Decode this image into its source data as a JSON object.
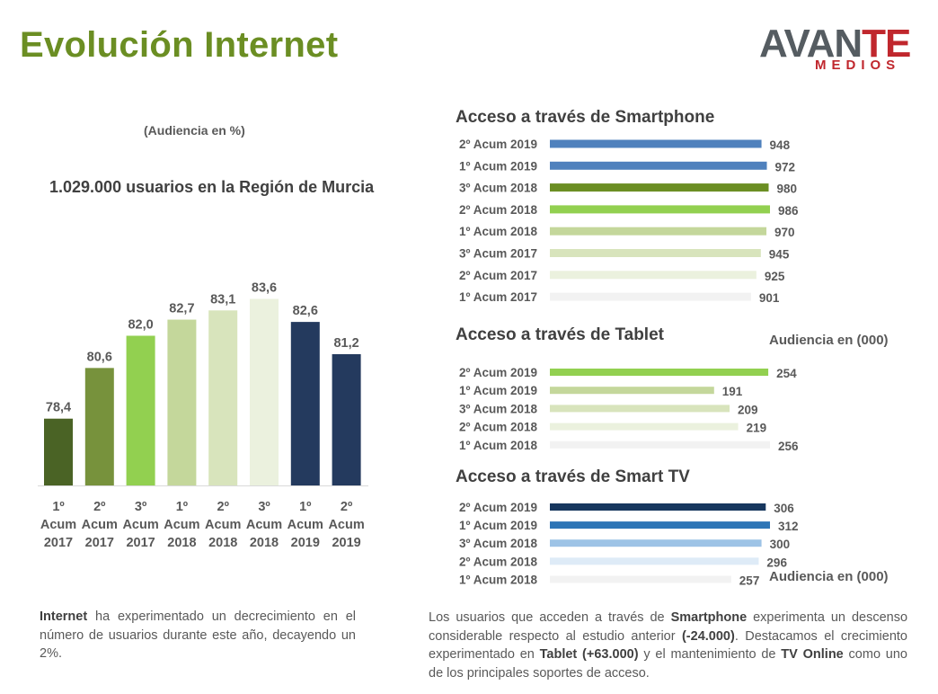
{
  "header": {
    "title": "Evolución Internet",
    "logo": {
      "word_main": "AVAN",
      "word_accent": "TE",
      "sub": "MEDIOS"
    }
  },
  "left": {
    "audience_note": "(Audiencia en %)",
    "users_headline": "1.029.000 usuarios en la Región de Murcia"
  },
  "right": {
    "tablet_unit_note": "Audiencia en (000)",
    "smarttv_unit_note": "Audiencia en (000)"
  },
  "text": {
    "left_paragraph": {
      "bold": "Internet",
      "rest": " ha experimentado un decrecimiento en el número de usuarios durante este año, decayendo un 2%."
    },
    "right_paragraph": {
      "part1": "Los usuarios que acceden a través de ",
      "bold1": "Smartphone",
      "part2": " experimenta un descenso considerable respecto al estudio anterior ",
      "bold2": "(-24.000)",
      "part3": ". Destacamos el crecimiento experimentado en ",
      "bold3": "Tablet (+63.000)",
      "part4": " y el mantenimiento de ",
      "bold4": "TV Online",
      "part5": " como uno de los principales soportes de acceso."
    }
  },
  "chart_data": [
    {
      "type": "bar",
      "orientation": "vertical",
      "categories": [
        [
          "1º",
          "Acum",
          "2017"
        ],
        [
          "2º",
          "Acum",
          "2017"
        ],
        [
          "3º",
          "Acum",
          "2017"
        ],
        [
          "1º",
          "Acum",
          "2018"
        ],
        [
          "2º",
          "Acum",
          "2018"
        ],
        [
          "3º",
          "Acum",
          "2018"
        ],
        [
          "1º",
          "Acum",
          "2019"
        ],
        [
          "2º",
          "Acum",
          "2019"
        ]
      ],
      "values": [
        78.4,
        80.6,
        82.0,
        82.7,
        83.1,
        83.6,
        82.6,
        81.2
      ],
      "data_labels": [
        "78,4",
        "80,6",
        "82,0",
        "82,7",
        "83,1",
        "83,6",
        "82,6",
        "81,2"
      ],
      "colors": [
        "#4a6325",
        "#77923c",
        "#92d050",
        "#c4d79b",
        "#d8e4bc",
        "#ebf1de",
        "#243a5e",
        "#243a5e"
      ],
      "ylim": [
        75.5,
        84.4
      ],
      "grid": false,
      "legend": "none"
    },
    {
      "type": "bar",
      "orientation": "horizontal",
      "title": "Acceso a través de Smartphone",
      "categories": [
        "2º Acum 2019",
        "1º Acum 2019",
        "3º Acum 2018",
        "2º Acum 2018",
        "1º Acum 2018",
        "3º Acum 2017",
        "2º Acum 2017",
        "1º Acum 2017"
      ],
      "values": [
        948,
        972,
        980,
        986,
        970,
        945,
        925,
        901
      ],
      "colors": [
        "#4f81bd",
        "#4f81bd",
        "#6b8e23",
        "#92d050",
        "#c4d79b",
        "#d8e4bc",
        "#ebf1de",
        "#f2f2f2"
      ],
      "xlim": [
        0,
        986
      ],
      "grid": false,
      "legend": "none"
    },
    {
      "type": "bar",
      "orientation": "horizontal",
      "title": "Acceso a través de Tablet",
      "categories": [
        "2º Acum 2019",
        "1º Acum 2019",
        "3º Acum 2018",
        "2º Acum 2018",
        "1º Acum 2018"
      ],
      "values": [
        254,
        191,
        209,
        219,
        256
      ],
      "colors": [
        "#92d050",
        "#c4d79b",
        "#d8e4bc",
        "#ebf1de",
        "#f2f2f2"
      ],
      "xlim": [
        0,
        256
      ],
      "grid": false,
      "legend": "none"
    },
    {
      "type": "bar",
      "orientation": "horizontal",
      "title": "Acceso a través de Smart TV",
      "categories": [
        "2º Acum 2019",
        "1º Acum 2019",
        "3º Acum 2018",
        "2º Acum 2018",
        "1º Acum 2018"
      ],
      "values": [
        306,
        312,
        300,
        296,
        257
      ],
      "colors": [
        "#17375e",
        "#2e75b6",
        "#9dc3e6",
        "#deebf7",
        "#f2f2f2"
      ],
      "xlim": [
        0,
        312
      ],
      "grid": false,
      "legend": "none"
    }
  ]
}
